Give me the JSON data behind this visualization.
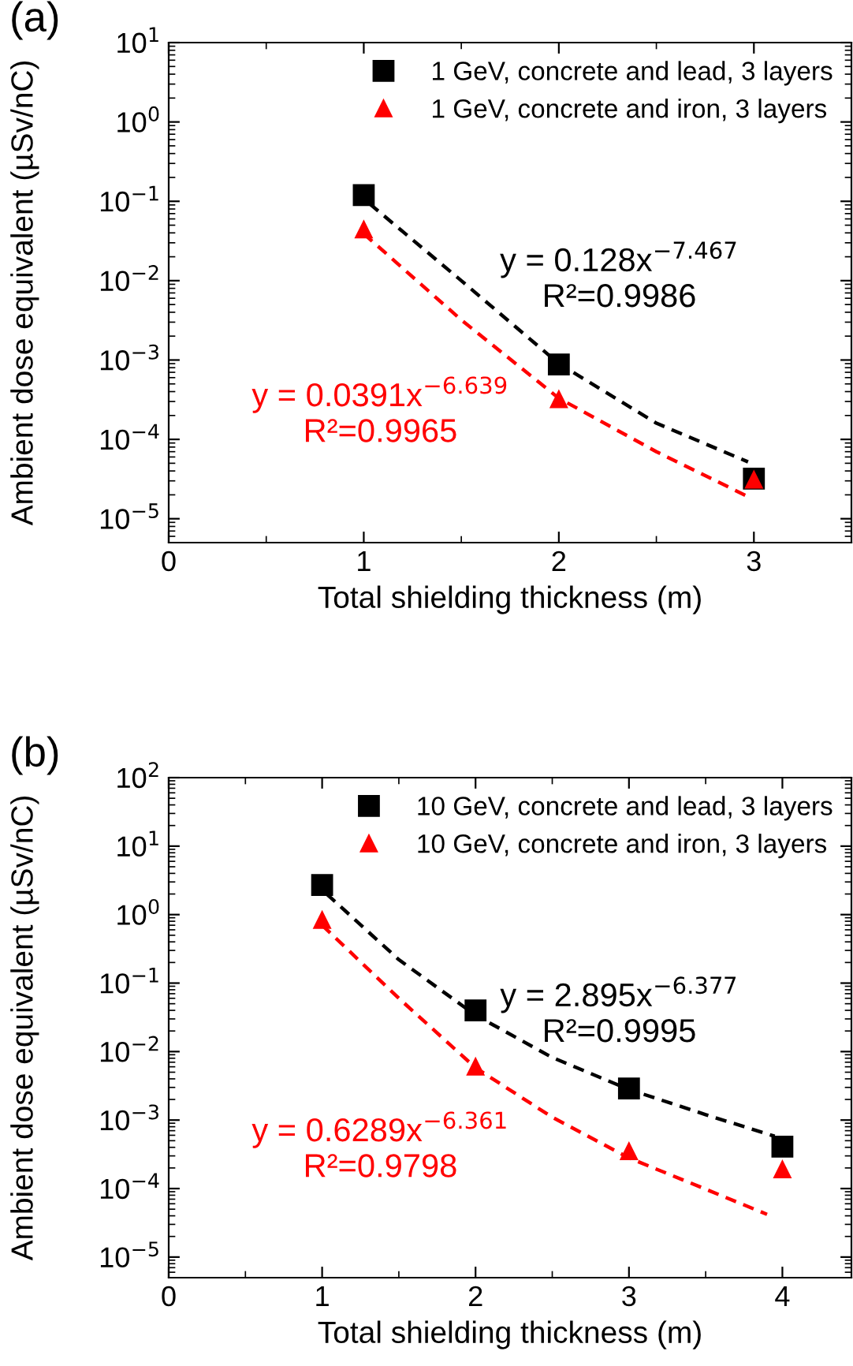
{
  "chart_data": [
    {
      "type": "scatter",
      "title": "(a)",
      "xlabel": "Total shielding thickness (m)",
      "ylabel": "Ambient dose equivalent (µSv/nC)",
      "log": "y",
      "grid": false,
      "legend": "top right",
      "xlim": [
        0,
        3.5
      ],
      "xticks": [
        0,
        1,
        2,
        3
      ],
      "ylim": [
        5e-06,
        10
      ],
      "yticks": [
        {
          "value": 1e-05,
          "label": "10$^{−5}$"
        },
        {
          "value": 0.0001,
          "label": "10$^{−4}$"
        },
        {
          "value": 0.001,
          "label": "10$^{−3}$"
        },
        {
          "value": 0.01,
          "label": "10$^{−2}$"
        },
        {
          "value": 0.1,
          "label": "10$^{−1}$"
        },
        {
          "value": 1,
          "label": "10$^{0}$"
        },
        {
          "value": 10,
          "label": "10$^{1}$"
        }
      ],
      "series": [
        {
          "name": "1 GeV, concrete and lead, 3 layers",
          "color": "#000000",
          "marker": "square",
          "x": [
            1,
            2,
            3
          ],
          "values": [
            0.12,
            0.00088,
            3.2e-05
          ]
        },
        {
          "name": "1 GeV, concrete and iron, 3 layers",
          "color": "#ff0000",
          "marker": "triangle",
          "x": [
            1,
            2,
            3
          ],
          "values": [
            0.044,
            0.00032,
            3.1e-05
          ]
        },
        {
          "type": "line",
          "color": "#000000",
          "line_style": "dashed",
          "marker": "none",
          "x": [
            1.03,
            1.5,
            2,
            2.5,
            2.97
          ],
          "values": [
            0.093,
            0.01,
            0.0009,
            0.00016,
            5.2e-05
          ]
        },
        {
          "type": "line",
          "color": "#ff0000",
          "line_style": "dashed",
          "marker": "none",
          "x": [
            1,
            1.5,
            2,
            2.5,
            2.97
          ],
          "values": [
            0.039,
            0.0032,
            0.00033,
            7e-05,
            1.9e-05
          ]
        }
      ],
      "annotations": [
        "y = 0.128x$^{−7.467}$\nR²=0.9986",
        "y = 0.0391x$^{−6.639}$\nR²=0.9965"
      ]
    },
    {
      "type": "scatter",
      "title": "(b)",
      "xlabel": "Total shielding thickness (m)",
      "ylabel": "Ambient dose equivalent (µSv/nC)",
      "log": "y",
      "grid": false,
      "legend": "top right",
      "xlim": [
        0,
        4.45
      ],
      "xticks": [
        0,
        1,
        2,
        3,
        4
      ],
      "ylim": [
        5e-06,
        100
      ],
      "yticks": [
        {
          "value": 1e-05,
          "label": "10$^{−5}$"
        },
        {
          "value": 0.0001,
          "label": "10$^{−4}$"
        },
        {
          "value": 0.001,
          "label": "10$^{−3}$"
        },
        {
          "value": 0.01,
          "label": "10$^{−2}$"
        },
        {
          "value": 0.1,
          "label": "10$^{−1}$"
        },
        {
          "value": 1,
          "label": "10$^{0}$"
        },
        {
          "value": 10,
          "label": "10$^{1}$"
        },
        {
          "value": 100,
          "label": "10$^{2}$"
        }
      ],
      "series": [
        {
          "name": "10 GeV, concrete and lead, 3 layers",
          "color": "#000000",
          "marker": "square",
          "x": [
            1,
            2,
            3,
            4
          ],
          "values": [
            2.7,
            0.04,
            0.0029,
            0.00041
          ]
        },
        {
          "name": "10 GeV, concrete and iron, 3 layers",
          "color": "#ff0000",
          "marker": "triangle",
          "x": [
            1,
            2,
            3,
            4
          ],
          "values": [
            0.83,
            0.006,
            0.00035,
            0.00019
          ]
        },
        {
          "type": "line",
          "color": "#000000",
          "line_style": "dashed",
          "marker": "none",
          "x": [
            1.03,
            1.5,
            2,
            2.5,
            3,
            3.5,
            3.95
          ],
          "values": [
            2.0,
            0.22,
            0.034,
            0.0082,
            0.0028,
            0.0012,
            0.00058
          ]
        },
        {
          "type": "line",
          "color": "#ff0000",
          "line_style": "dashed",
          "marker": "none",
          "x": [
            1,
            1.5,
            2,
            2.5,
            3,
            3.5,
            3.9
          ],
          "values": [
            0.7,
            0.06,
            0.0058,
            0.0011,
            0.00028,
            9.8e-05,
            4.2e-05
          ]
        }
      ],
      "annotations": [
        "y = 2.895x$^{−6.377}$\nR²=0.9995",
        "y = 0.6289x$^{−6.361}$\nR²=0.9798"
      ]
    }
  ]
}
